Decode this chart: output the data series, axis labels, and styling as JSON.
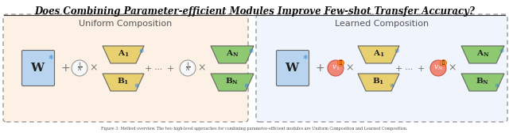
{
  "title": "Does Combining Parameter-efficient Modules Improve Few-shot Transfer Accuracy?",
  "title_fontsize": 8.5,
  "bg_color": "#ffffff",
  "left_panel_label": "Uniform Composition",
  "right_panel_label": "Learned Composition",
  "left_bg": "#fdf0e4",
  "right_bg": "#f0f4fc",
  "panel_border_color": "#999999",
  "W_color": "#b8d4ee",
  "A1_color": "#e8d070",
  "B1_color": "#e8d070",
  "AN_color": "#8ec870",
  "BN_color": "#8ec870",
  "v_color": "#f07868",
  "freeze_color": "#4488cc",
  "text_color": "#111111",
  "caption": "Figure 3: Method overview. The two high-level approaches for combining parameter-efficient modules are Uniform Composition and Learned Composition."
}
